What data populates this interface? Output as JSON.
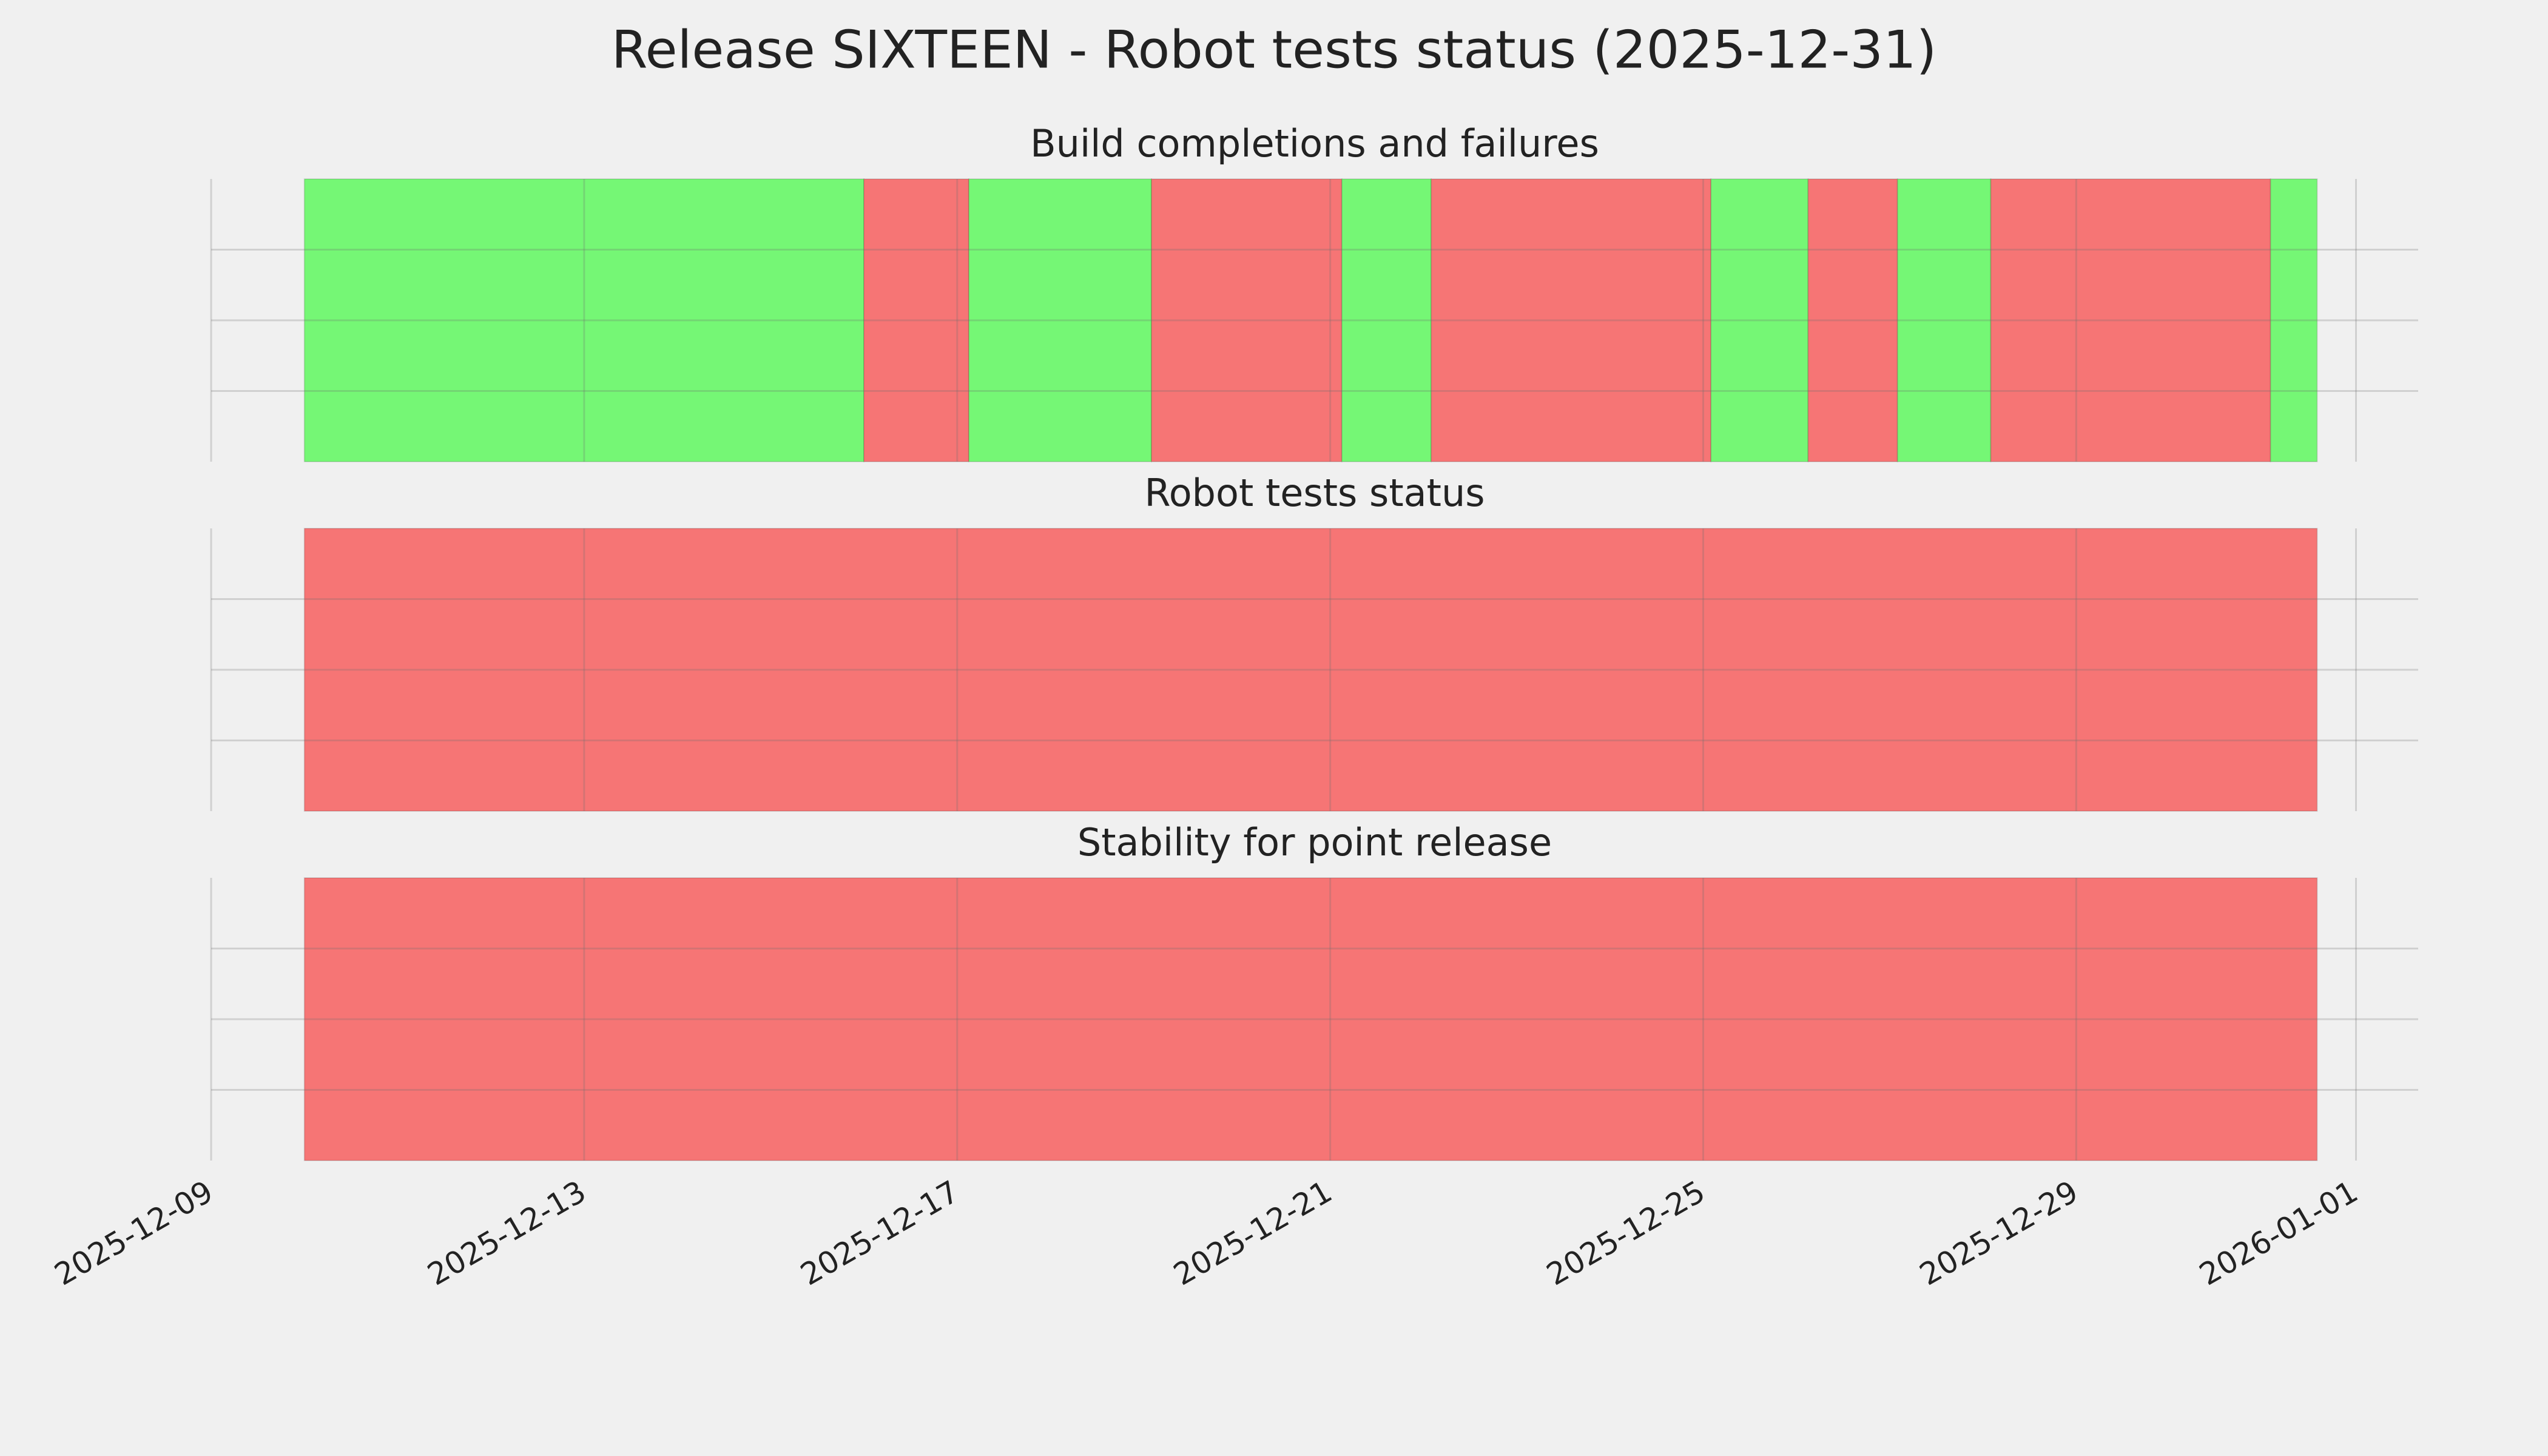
{
  "chart_data": {
    "type": "timeline",
    "title": "Release SIXTEEN - Robot tests status (2025-12-31)",
    "xlim": [
      "2025-12-09 00:00",
      "2026-01-01 16:00"
    ],
    "xticks": [
      "2025-12-09",
      "2025-12-13",
      "2025-12-17",
      "2025-12-21",
      "2025-12-25",
      "2025-12-29",
      "2026-01-01"
    ],
    "ylim": [
      0,
      1
    ],
    "yticks": [
      0.25,
      0.5,
      0.75
    ],
    "grid": true,
    "panels": [
      {
        "title": "Build completions and failures",
        "segments": {
          "start": [
            "2025-12-10 00:00",
            "2025-12-16 00:00",
            "2025-12-17 03:00",
            "2025-12-19 02:00",
            "2025-12-21 03:00",
            "2025-12-22 02:00",
            "2025-12-25 02:00",
            "2025-12-26 03:00",
            "2025-12-27 02:00",
            "2025-12-28 02:00",
            "2025-12-31 02:00"
          ],
          "end": [
            "2025-12-16 00:00",
            "2025-12-17 03:00",
            "2025-12-19 02:00",
            "2025-12-21 03:00",
            "2025-12-22 02:00",
            "2025-12-25 02:00",
            "2025-12-26 03:00",
            "2025-12-27 02:00",
            "2025-12-28 02:00",
            "2025-12-31 02:00",
            "2025-12-31 14:00"
          ],
          "color": [
            "#75f775",
            "#f67575",
            "#75f775",
            "#f67575",
            "#75f775",
            "#f67575",
            "#75f775",
            "#f67575",
            "#75f775",
            "#f67575",
            "#75f775"
          ]
        }
      },
      {
        "title": "Robot tests status",
        "segments": {
          "start": [
            "2025-12-10 00:00"
          ],
          "end": [
            "2025-12-31 14:00"
          ],
          "color": [
            "#f67575"
          ]
        }
      },
      {
        "title": "Stability for point release",
        "segments": {
          "start": [
            "2025-12-10 00:00"
          ],
          "end": [
            "2025-12-31 14:00"
          ],
          "color": [
            "#f67575"
          ]
        }
      }
    ]
  }
}
